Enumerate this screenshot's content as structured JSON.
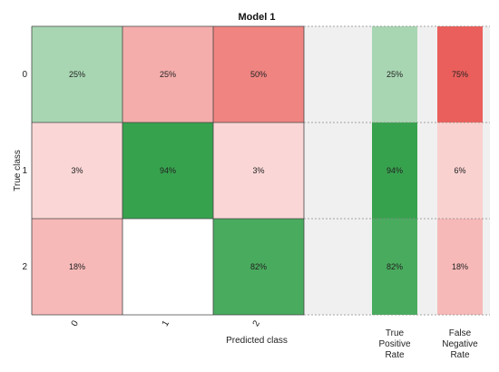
{
  "chart_data": {
    "type": "heatmap",
    "title": "Model 1",
    "xlabel": "Predicted class",
    "ylabel": "True class",
    "row_labels": [
      "0",
      "1",
      "2"
    ],
    "col_labels": [
      "0",
      "1",
      "2"
    ],
    "matrix": [
      [
        "25%",
        "25%",
        "50%"
      ],
      [
        "3%",
        "94%",
        "3%"
      ],
      [
        "18%",
        "",
        "82%"
      ]
    ],
    "matrix_values": [
      [
        25,
        25,
        50
      ],
      [
        3,
        94,
        3
      ],
      [
        18,
        0,
        82
      ]
    ],
    "tpr": {
      "label_lines": [
        "True",
        "Positive",
        "Rate"
      ],
      "values": [
        "25%",
        "94%",
        "82%"
      ],
      "numbers": [
        25,
        94,
        82
      ]
    },
    "fnr": {
      "label_lines": [
        "False",
        "Negative",
        "Rate"
      ],
      "values": [
        "75%",
        "6%",
        "18%"
      ],
      "numbers": [
        75,
        6,
        18
      ]
    },
    "colors": {
      "positive": "#2e9e46",
      "negative": "#e53b36",
      "background": "#f0f0f0"
    }
  }
}
